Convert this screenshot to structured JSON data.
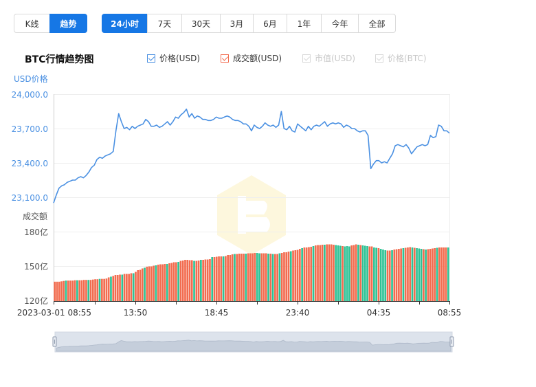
{
  "toggle_group": [
    {
      "label": "K线",
      "active": false
    },
    {
      "label": "趋势",
      "active": true
    }
  ],
  "range_group": [
    {
      "label": "24小时",
      "active": true
    },
    {
      "label": "7天",
      "active": false
    },
    {
      "label": "30天",
      "active": false
    },
    {
      "label": "3月",
      "active": false
    },
    {
      "label": "6月",
      "active": false
    },
    {
      "label": "1年",
      "active": false
    },
    {
      "label": "今年",
      "active": false
    },
    {
      "label": "全部",
      "active": false
    }
  ],
  "legend": [
    {
      "label": "价格(USD)",
      "enabled": true,
      "color": "#4a90e2"
    },
    {
      "label": "成交额(USD)",
      "enabled": true,
      "color": "#f26c4f"
    },
    {
      "label": "市值(USD)",
      "enabled": false
    },
    {
      "label": "价格(BTC)",
      "enabled": false
    }
  ],
  "chart_data": [
    {
      "type": "line",
      "title": "BTC行情趋势图",
      "ylabel": "USD价格",
      "ylim": [
        23000,
        24000
      ],
      "yticks": [
        "24,000.0",
        "23,700.0",
        "23,400.0",
        "23,100.0"
      ],
      "xticks": [
        "2023-03-01 08:55",
        "13:50",
        "18:45",
        "23:40",
        "04:35",
        "08:55"
      ],
      "series": [
        {
          "color": "#4a90e2",
          "values": [
            23050,
            23120,
            23180,
            23200,
            23210,
            23230,
            23240,
            23250,
            23250,
            23270,
            23280,
            23270,
            23290,
            23320,
            23360,
            23380,
            23430,
            23450,
            23440,
            23460,
            23470,
            23480,
            23500,
            23680,
            23830,
            23760,
            23700,
            23710,
            23690,
            23720,
            23700,
            23720,
            23730,
            23740,
            23780,
            23760,
            23720,
            23720,
            23730,
            23710,
            23720,
            23740,
            23760,
            23730,
            23760,
            23800,
            23790,
            23820,
            23840,
            23870,
            23800,
            23830,
            23790,
            23810,
            23800,
            23780,
            23780,
            23770,
            23770,
            23780,
            23800,
            23790,
            23790,
            23800,
            23810,
            23800,
            23780,
            23770,
            23770,
            23760,
            23740,
            23740,
            23720,
            23680,
            23730,
            23710,
            23700,
            23720,
            23750,
            23730,
            23720,
            23730,
            23710,
            23730,
            23850,
            23700,
            23690,
            23720,
            23680,
            23670,
            23740,
            23720,
            23700,
            23680,
            23720,
            23690,
            23720,
            23730,
            23720,
            23740,
            23760,
            23720,
            23740,
            23750,
            23740,
            23750,
            23740,
            23710,
            23730,
            23720,
            23700,
            23700,
            23680,
            23670,
            23680,
            23680,
            23640,
            23350,
            23390,
            23420,
            23420,
            23400,
            23410,
            23400,
            23440,
            23480,
            23550,
            23560,
            23550,
            23540,
            23560,
            23530,
            23480,
            23510,
            23540,
            23550,
            23560,
            23550,
            23560,
            23640,
            23620,
            23630,
            23730,
            23720,
            23680,
            23680,
            23660
          ]
        }
      ]
    },
    {
      "type": "bar",
      "ylabel": "成交额",
      "ylim": [
        120,
        180
      ],
      "yticks": [
        "180亿",
        "150亿",
        "120亿"
      ],
      "colors": {
        "up": "#f26c4f",
        "down": "#2ec295"
      },
      "series": [
        {
          "values": [
            136.3,
            136.3,
            136.3,
            136.6,
            137.0,
            137.3,
            137.3,
            137.3,
            137.3,
            137.6,
            137.6,
            137.6,
            137.6,
            137.9,
            137.9,
            137.9,
            137.9,
            138.2,
            138.5,
            138.5,
            138.8,
            138.8,
            138.8,
            139.1,
            140.1,
            140.7,
            141.3,
            142.2,
            142.2,
            142.5,
            142.5,
            143.1,
            143.1,
            143.1,
            143.7,
            143.7,
            144.9,
            146.4,
            146.7,
            147.9,
            148.5,
            149.4,
            149.7,
            149.7,
            150.3,
            150.6,
            151.2,
            151.5,
            151.5,
            151.8,
            151.8,
            152.4,
            152.7,
            153.3,
            153.3,
            153.6,
            154.5,
            154.8,
            155.4,
            155.4,
            155.1,
            155.1,
            154.5,
            154.5,
            154.8,
            155.4,
            155.4,
            155.7,
            155.7,
            156.0,
            157.8,
            157.8,
            158.1,
            158.4,
            158.4,
            158.4,
            158.7,
            159.6,
            159.6,
            160.2,
            160.5,
            160.5,
            160.8,
            160.8,
            160.8,
            160.8,
            161.1,
            161.1,
            161.1,
            161.4,
            161.4,
            161.1,
            161.1,
            161.1,
            161.1,
            160.8,
            160.8,
            160.5,
            160.5,
            160.5,
            161.1,
            161.4,
            162.0,
            162.0,
            162.6,
            162.9,
            163.5,
            163.8,
            164.1,
            165.0,
            165.6,
            166.2,
            166.2,
            166.5,
            166.8,
            167.4,
            168.0,
            168.3,
            168.3,
            168.6,
            168.6,
            168.9,
            168.9,
            168.9,
            168.6,
            168.3,
            168.0,
            167.7,
            167.4,
            167.1,
            167.4,
            167.1,
            168.0,
            168.3,
            168.9,
            168.6,
            168.3,
            168.0,
            167.7,
            167.4,
            167.1,
            167.1,
            166.2,
            165.9,
            165.6,
            165.0,
            164.4,
            163.8,
            163.5,
            163.5,
            163.8,
            164.4,
            164.7,
            165.0,
            165.3,
            165.6,
            165.9,
            166.2,
            166.5,
            166.2,
            165.9,
            165.6,
            165.3,
            165.0,
            164.7,
            164.4,
            164.7,
            165.0,
            165.3,
            165.6,
            165.9,
            166.2,
            166.2,
            166.2,
            166.2,
            166.2
          ]
        }
      ]
    }
  ]
}
